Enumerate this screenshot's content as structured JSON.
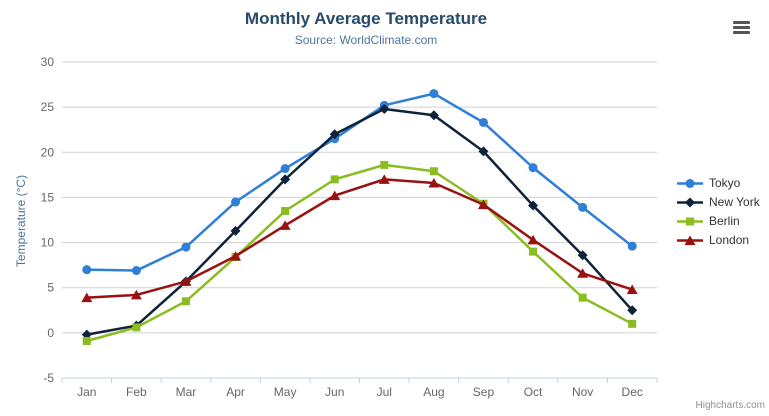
{
  "chart_data": {
    "type": "line",
    "title": "Monthly Average Temperature",
    "subtitle": "Source: WorldClimate.com",
    "categories": [
      "Jan",
      "Feb",
      "Mar",
      "Apr",
      "May",
      "Jun",
      "Jul",
      "Aug",
      "Sep",
      "Oct",
      "Nov",
      "Dec"
    ],
    "xlabel": "",
    "ylabel": "Temperature (°C)",
    "ylim": [
      -5,
      30
    ],
    "ytick_interval": 5,
    "grid": true,
    "legend_position": "right",
    "series": [
      {
        "name": "Tokyo",
        "marker": "circle",
        "color": "#2f7ed8",
        "values": [
          7.0,
          6.9,
          9.5,
          14.5,
          18.2,
          21.5,
          25.2,
          26.5,
          23.3,
          18.3,
          13.9,
          9.6
        ]
      },
      {
        "name": "New York",
        "marker": "diamond",
        "color": "#0d233a",
        "values": [
          -0.2,
          0.8,
          5.7,
          11.3,
          17.0,
          22.0,
          24.8,
          24.1,
          20.1,
          14.1,
          8.6,
          2.5
        ]
      },
      {
        "name": "Berlin",
        "marker": "square",
        "color": "#8bbc21",
        "values": [
          -0.9,
          0.6,
          3.5,
          8.4,
          13.5,
          17.0,
          18.6,
          17.9,
          14.3,
          9.0,
          3.9,
          1.0
        ]
      },
      {
        "name": "London",
        "marker": "triangle",
        "color": "#991111",
        "values": [
          3.9,
          4.2,
          5.7,
          8.5,
          11.9,
          15.2,
          17.0,
          16.6,
          14.2,
          10.3,
          6.6,
          4.8
        ]
      }
    ],
    "styles": {
      "title_color": "#274b6d",
      "subtitle_color": "#4d759e",
      "axis_title_color": "#4d759e",
      "tick_label_color": "#666666",
      "gridline_color": "#d0d0d0",
      "axis_line_color": "#c0d0e0",
      "legend_text_color": "#333333"
    },
    "credit": "Highcharts.com"
  }
}
